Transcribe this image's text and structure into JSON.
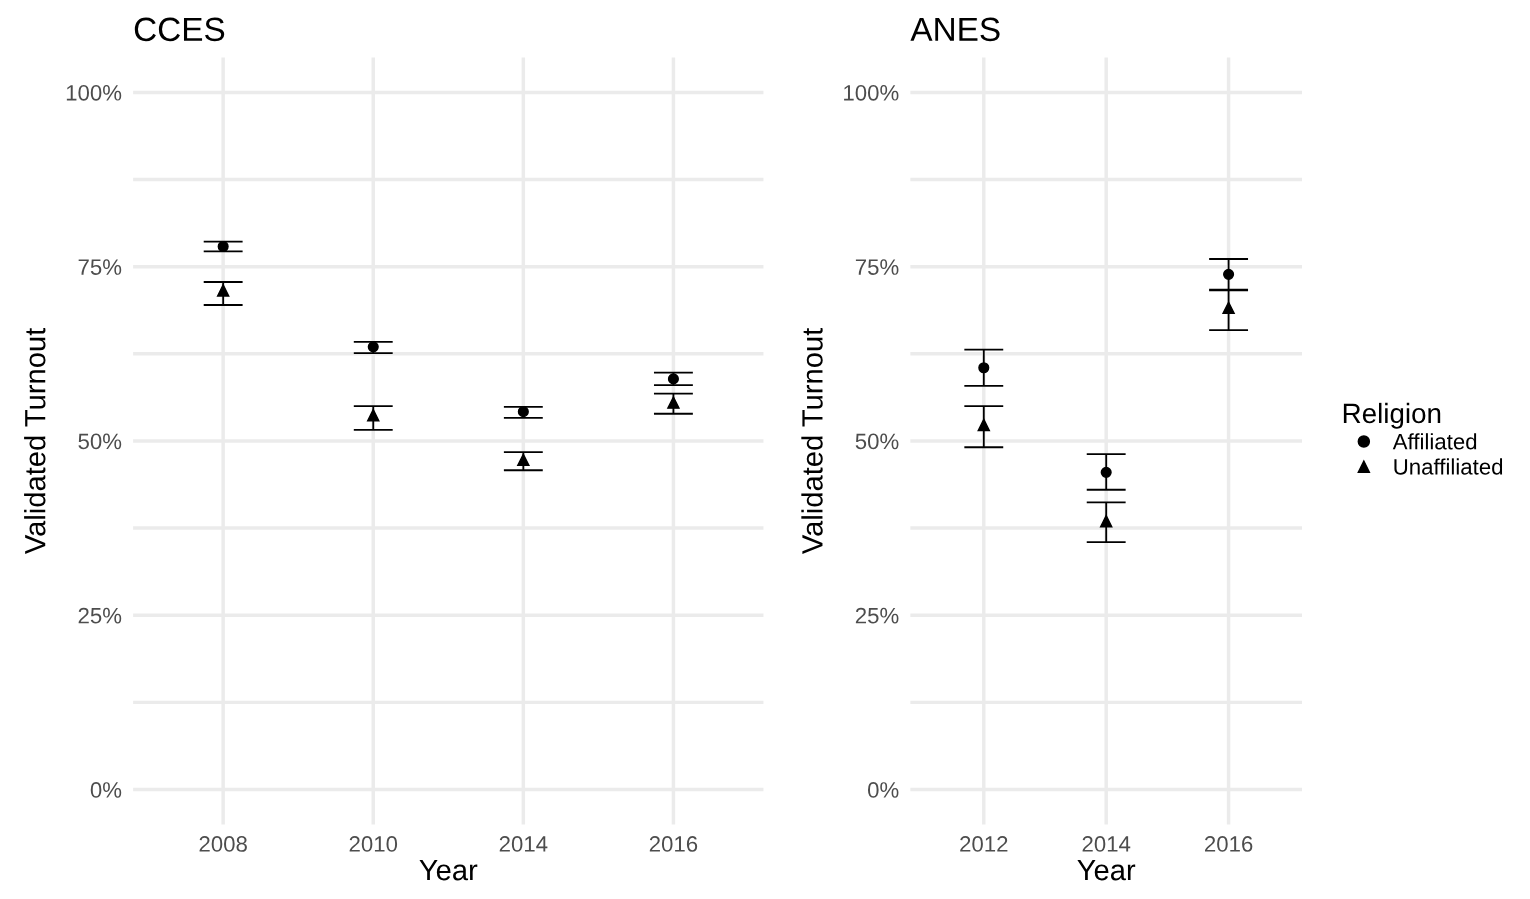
{
  "chart_data": [
    {
      "type": "scatter",
      "title": "CCES",
      "xlabel": "Year",
      "ylabel": "Validated Turnout",
      "categories": [
        "2008",
        "2010",
        "2014",
        "2016"
      ],
      "ylim": [
        -5,
        105
      ],
      "yticks": [
        {
          "value": 0,
          "label": "0%"
        },
        {
          "value": 12.5,
          "label": null
        },
        {
          "value": 25,
          "label": "25%"
        },
        {
          "value": 37.5,
          "label": null
        },
        {
          "value": 50,
          "label": "50%"
        },
        {
          "value": 62.5,
          "label": null
        },
        {
          "value": 75,
          "label": "75%"
        },
        {
          "value": 87.5,
          "label": null
        },
        {
          "value": 100,
          "label": "100%"
        }
      ],
      "grid": true,
      "series": [
        {
          "color": "#000000",
          "marker": "circle",
          "values": [
            77.9,
            63.5,
            54.2,
            58.9
          ],
          "errors": [
            [
              77.2,
              78.6
            ],
            [
              62.6,
              64.2
            ],
            [
              53.3,
              54.9
            ],
            [
              58.0,
              59.8
            ]
          ]
        },
        {
          "color": "#000000",
          "marker": "triangle",
          "values": [
            71.6,
            53.7,
            47.3,
            55.5
          ],
          "errors": [
            [
              69.5,
              72.8
            ],
            [
              51.6,
              55.0
            ],
            [
              45.8,
              48.4
            ],
            [
              53.9,
              56.8
            ]
          ]
        }
      ]
    },
    {
      "type": "scatter",
      "title": "ANES",
      "xlabel": "Year",
      "ylabel": "Validated Turnout",
      "legend_title": "Religion",
      "categories": [
        "2012",
        "2014",
        "2016"
      ],
      "ylim": [
        -5,
        105
      ],
      "yticks": [
        {
          "value": 0,
          "label": "0%"
        },
        {
          "value": 12.5,
          "label": null
        },
        {
          "value": 25,
          "label": "25%"
        },
        {
          "value": 37.5,
          "label": null
        },
        {
          "value": 50,
          "label": "50%"
        },
        {
          "value": 62.5,
          "label": null
        },
        {
          "value": 75,
          "label": "75%"
        },
        {
          "value": 87.5,
          "label": null
        },
        {
          "value": 100,
          "label": "100%"
        }
      ],
      "grid": true,
      "legend": "right",
      "series": [
        {
          "name": "Affiliated",
          "color": "#000000",
          "marker": "circle",
          "values": [
            60.5,
            45.5,
            73.9
          ],
          "errors": [
            [
              57.9,
              63.1
            ],
            [
              43.0,
              48.1
            ],
            [
              71.6,
              76.1
            ]
          ]
        },
        {
          "name": "Unaffiliated",
          "color": "#000000",
          "marker": "triangle",
          "values": [
            52.3,
            38.5,
            69.1
          ],
          "errors": [
            [
              49.1,
              55.0
            ],
            [
              35.5,
              41.2
            ],
            [
              65.9,
              71.7
            ]
          ]
        }
      ]
    }
  ]
}
